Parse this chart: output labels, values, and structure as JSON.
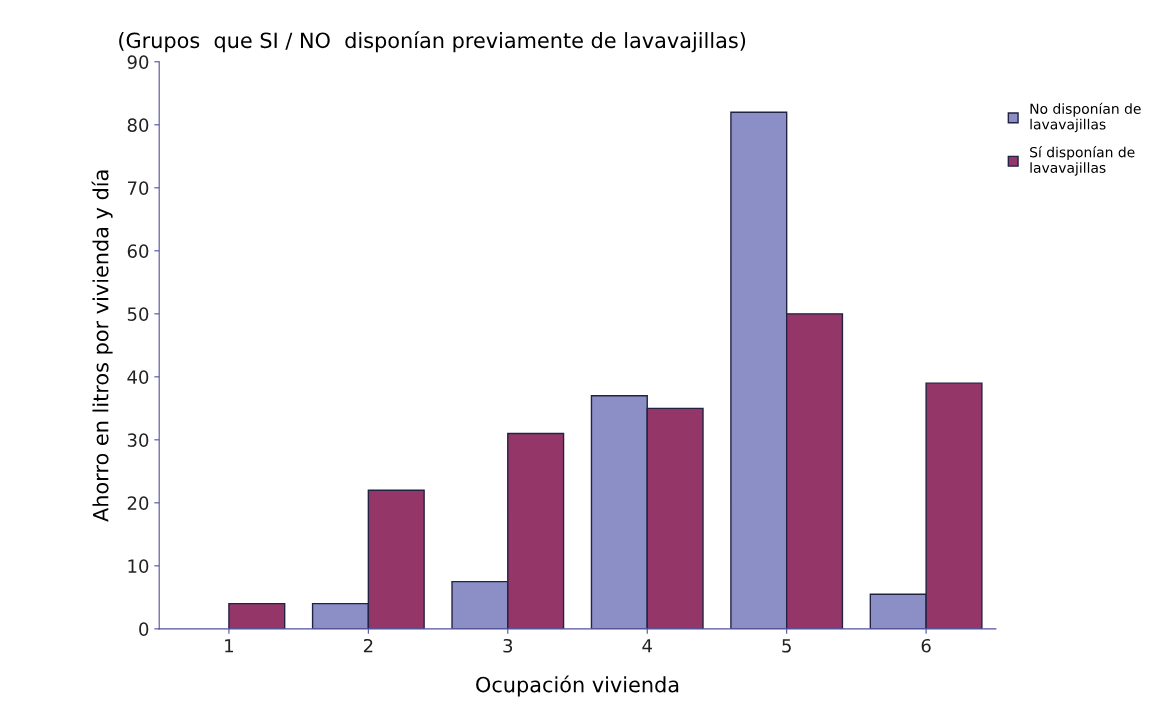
{
  "chart_data": {
    "type": "bar",
    "title": "(Grupos  que SI / NO  disponían previamente de lavavajillas)",
    "xlabel": "Ocupación vivienda",
    "ylabel": "Ahorro en litros por vivienda y día",
    "categories": [
      "1",
      "2",
      "3",
      "4",
      "5",
      "6"
    ],
    "series": [
      {
        "name": "No disponían de\nlavavajillas",
        "color": "#8b8fc6",
        "values": [
          null,
          4,
          7.5,
          37,
          82,
          5.5
        ]
      },
      {
        "name": "Sí disponían de\nlavavajillas",
        "color": "#943768",
        "values": [
          4,
          22,
          31,
          35,
          50,
          39
        ]
      }
    ],
    "ylim": [
      0,
      90
    ],
    "yticks": [
      0,
      10,
      20,
      30,
      40,
      50,
      60,
      70,
      80,
      90
    ],
    "grid": false,
    "legend": "top right"
  }
}
